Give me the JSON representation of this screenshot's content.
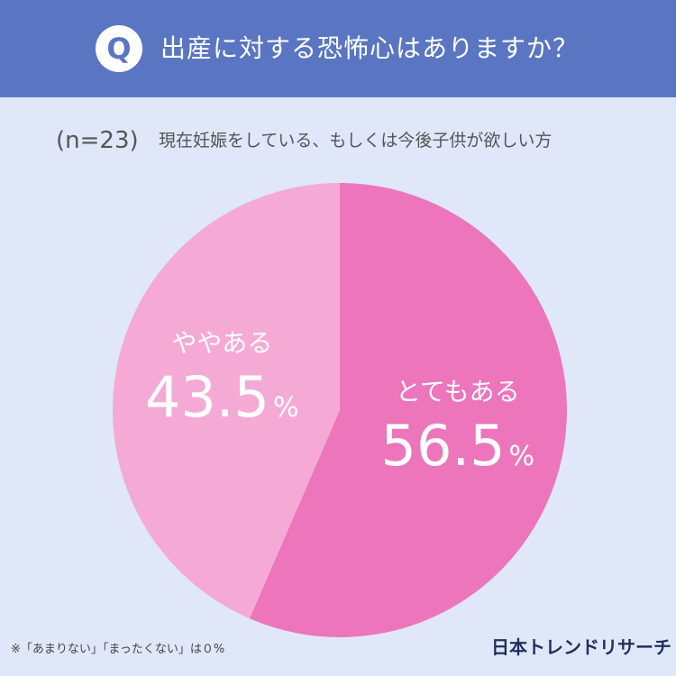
{
  "header": {
    "badge": "Q",
    "question": "出産に対する恐怖心はありますか？"
  },
  "sample_label": "(n=23)",
  "subtitle": "現在妊娠をしている、もしくは今後子供が欲しい方",
  "chart_data": {
    "type": "pie",
    "slices": [
      {
        "label": "とてもある",
        "value": 56.5,
        "display": "56.5",
        "unit": "%",
        "color": "#ec75bb"
      },
      {
        "label": "ややある",
        "value": 43.5,
        "display": "43.5",
        "unit": "%",
        "color": "#f5aad6"
      }
    ]
  },
  "footnote": "※「あまりない」「まったくない」は０%",
  "brand": "日本トレンドリサーチ"
}
